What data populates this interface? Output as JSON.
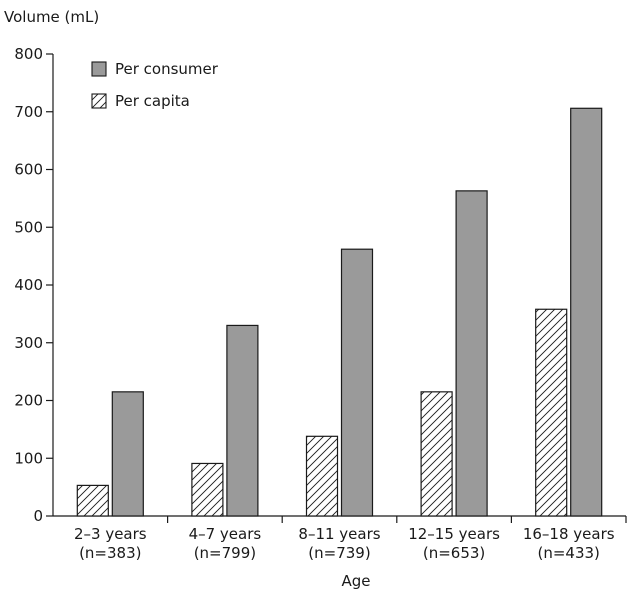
{
  "chart_data": {
    "type": "bar",
    "ylabel": "Volume (mL)",
    "xlabel": "Age",
    "ylim": [
      0,
      800
    ],
    "yticks": [
      0,
      100,
      200,
      300,
      400,
      500,
      600,
      700,
      800
    ],
    "categories": [
      {
        "label": "2–3 years",
        "n": "(n=383)"
      },
      {
        "label": "4–7 years",
        "n": "(n=799)"
      },
      {
        "label": "8–11 years",
        "n": "(n=739)"
      },
      {
        "label": "12–15 years",
        "n": "(n=653)"
      },
      {
        "label": "16–18 years",
        "n": "(n=433)"
      }
    ],
    "series": [
      {
        "name": "Per capita",
        "values": [
          53,
          91,
          138,
          215,
          358
        ],
        "fill": "hatched"
      },
      {
        "name": "Per consumer",
        "values": [
          215,
          330,
          462,
          563,
          706
        ],
        "color": "#9a9a9a"
      }
    ],
    "legend": {
      "placement": "top-left",
      "order": [
        "Per consumer",
        "Per capita"
      ]
    },
    "grid": false
  }
}
